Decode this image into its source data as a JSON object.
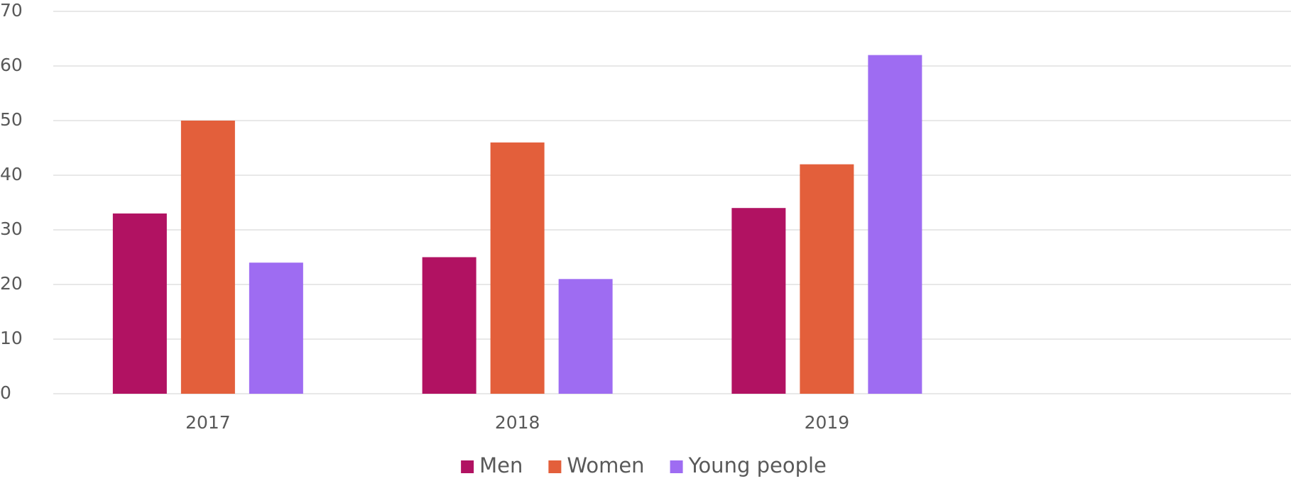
{
  "chart_data": {
    "type": "bar",
    "categories": [
      "2017",
      "2018",
      "2019",
      null
    ],
    "series": [
      {
        "name": "Men",
        "color": "#b11262",
        "values": [
          33,
          25,
          34,
          null
        ]
      },
      {
        "name": "Women",
        "color": "#e35f3b",
        "values": [
          50,
          46,
          42,
          null
        ]
      },
      {
        "name": "Young people",
        "color": "#9e6cf2",
        "values": [
          24,
          21,
          62,
          null
        ]
      }
    ],
    "ylim": [
      0,
      70
    ],
    "yticks": [
      0,
      10,
      20,
      30,
      40,
      50,
      60,
      70
    ],
    "grid": true,
    "legend": "bottom"
  }
}
